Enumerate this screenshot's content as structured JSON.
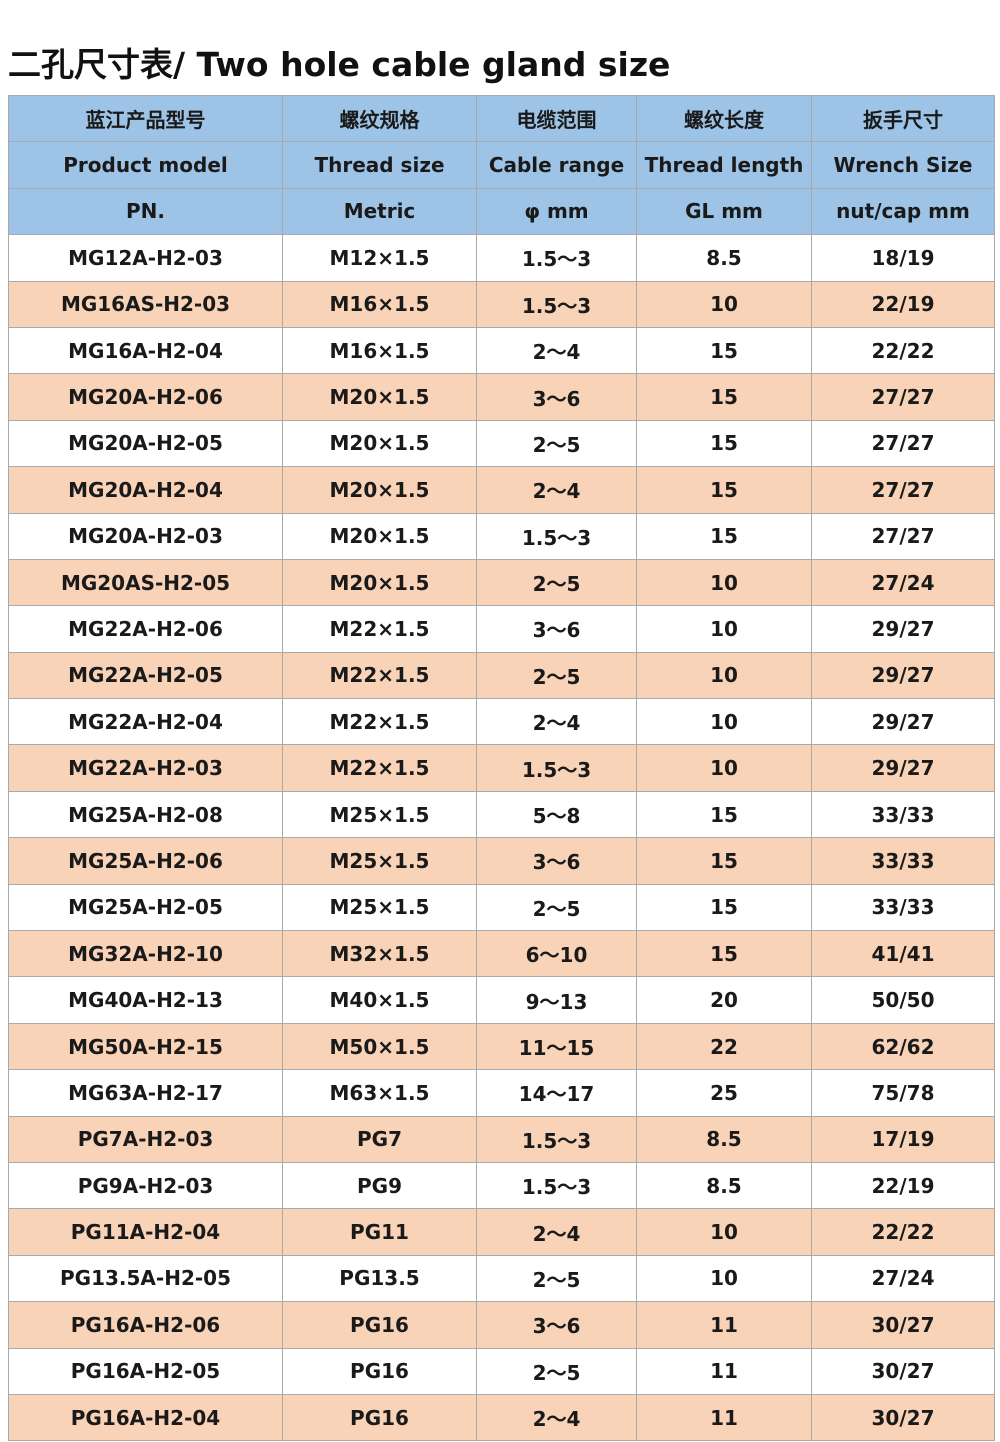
{
  "header": {
    "title": "二孔尺寸表/ Two hole cable gland size"
  },
  "table": {
    "head": [
      [
        "蓝江产品型号",
        "螺纹规格",
        "电缆范围",
        "螺纹长度",
        "扳手尺寸"
      ],
      [
        "Product model",
        "Thread size",
        "Cable range",
        "Thread length",
        "Wrench Size"
      ],
      [
        "PN.",
        "Metric",
        "φ mm",
        "GL mm",
        "nut/cap mm"
      ]
    ],
    "rows": [
      [
        "MG12A-H2-03",
        "M12×1.5",
        "1.5～3",
        "8.5",
        "18/19"
      ],
      [
        "MG16AS-H2-03",
        "M16×1.5",
        "1.5～3",
        "10",
        "22/19"
      ],
      [
        "MG16A-H2-04",
        "M16×1.5",
        "2～4",
        "15",
        "22/22"
      ],
      [
        "MG20A-H2-06",
        "M20×1.5",
        "3～6",
        "15",
        "27/27"
      ],
      [
        "MG20A-H2-05",
        "M20×1.5",
        "2～5",
        "15",
        "27/27"
      ],
      [
        "MG20A-H2-04",
        "M20×1.5",
        "2～4",
        "15",
        "27/27"
      ],
      [
        "MG20A-H2-03",
        "M20×1.5",
        "1.5～3",
        "15",
        "27/27"
      ],
      [
        "MG20AS-H2-05",
        "M20×1.5",
        "2～5",
        "10",
        "27/24"
      ],
      [
        "MG22A-H2-06",
        "M22×1.5",
        "3～6",
        "10",
        "29/27"
      ],
      [
        "MG22A-H2-05",
        "M22×1.5",
        "2～5",
        "10",
        "29/27"
      ],
      [
        "MG22A-H2-04",
        "M22×1.5",
        "2～4",
        "10",
        "29/27"
      ],
      [
        "MG22A-H2-03",
        "M22×1.5",
        "1.5～3",
        "10",
        "29/27"
      ],
      [
        "MG25A-H2-08",
        "M25×1.5",
        "5～8",
        "15",
        "33/33"
      ],
      [
        "MG25A-H2-06",
        "M25×1.5",
        "3～6",
        "15",
        "33/33"
      ],
      [
        "MG25A-H2-05",
        "M25×1.5",
        "2～5",
        "15",
        "33/33"
      ],
      [
        "MG32A-H2-10",
        "M32×1.5",
        "6～10",
        "15",
        "41/41"
      ],
      [
        "MG40A-H2-13",
        "M40×1.5",
        "9～13",
        "20",
        "50/50"
      ],
      [
        "MG50A-H2-15",
        "M50×1.5",
        "11～15",
        "22",
        "62/62"
      ],
      [
        "MG63A-H2-17",
        "M63×1.5",
        "14～17",
        "25",
        "75/78"
      ],
      [
        "PG7A-H2-03",
        "PG7",
        "1.5～3",
        "8.5",
        "17/19"
      ],
      [
        "PG9A-H2-03",
        "PG9",
        "1.5～3",
        "8.5",
        "22/19"
      ],
      [
        "PG11A-H2-04",
        "PG11",
        "2～4",
        "10",
        "22/22"
      ],
      [
        "PG13.5A-H2-05",
        "PG13.5",
        "2～5",
        "10",
        "27/24"
      ],
      [
        "PG16A-H2-06",
        "PG16",
        "3～6",
        "11",
        "30/27"
      ],
      [
        "PG16A-H2-05",
        "PG16",
        "2～5",
        "11",
        "30/27"
      ],
      [
        "PG16A-H2-04",
        "PG16",
        "2～4",
        "11",
        "30/27"
      ]
    ]
  }
}
